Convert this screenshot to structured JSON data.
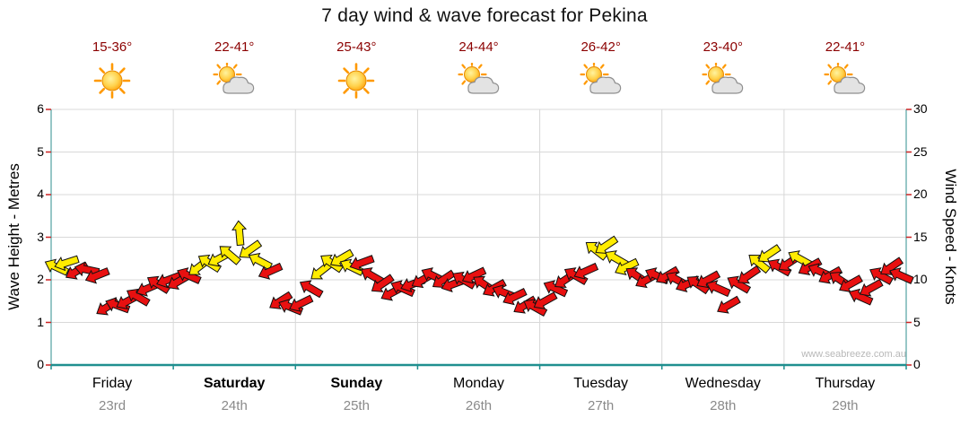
{
  "title": "7 day wind & wave forecast for Pekina",
  "watermark": "www.seabreeze.com.au",
  "axes": {
    "left_label": "Wave Height - Metres",
    "right_label": "Wind Speed - Knots",
    "left_ticks": [
      "0",
      "1",
      "2",
      "3",
      "4",
      "5",
      "6"
    ],
    "right_ticks": [
      "0",
      "5",
      "10",
      "15",
      "20",
      "25",
      "30"
    ]
  },
  "days": [
    {
      "name": "Friday",
      "date": "23rd",
      "temp_range": "15-36°",
      "icon": "sun",
      "weekend": false
    },
    {
      "name": "Saturday",
      "date": "24th",
      "temp_range": "22-41°",
      "icon": "sun-cloud",
      "weekend": true
    },
    {
      "name": "Sunday",
      "date": "25th",
      "temp_range": "25-43°",
      "icon": "sun",
      "weekend": true
    },
    {
      "name": "Monday",
      "date": "26th",
      "temp_range": "24-44°",
      "icon": "sun-cloud",
      "weekend": false
    },
    {
      "name": "Tuesday",
      "date": "27th",
      "temp_range": "26-42°",
      "icon": "sun-cloud",
      "weekend": false
    },
    {
      "name": "Wednesday",
      "date": "28th",
      "temp_range": "23-40°",
      "icon": "sun-cloud",
      "weekend": false
    },
    {
      "name": "Thursday",
      "date": "29th",
      "temp_range": "22-41°",
      "icon": "sun-cloud",
      "weekend": false
    }
  ],
  "colors": {
    "arrow_red": "#e81010",
    "arrow_yellow": "#ffec00",
    "arrow_outline": "#101010",
    "grid": "#d8d8d8",
    "frame": "#2f8f8f",
    "bottom_axis": "#1f8f8f",
    "tick": "#cc2222",
    "temp_text": "#8b0000",
    "date_text": "#8a8a8a"
  },
  "chart_data": {
    "type": "scatter",
    "marker": "wind-arrow",
    "title": "7 day wind & wave forecast for Pekina",
    "categories": [
      "Friday 23rd",
      "Saturday 24th",
      "Sunday 25th",
      "Monday 26th",
      "Tuesday 27th",
      "Wednesday 28th",
      "Thursday 29th"
    ],
    "y_axis_left": {
      "label": "Wave Height - Metres",
      "range": [
        0,
        6
      ]
    },
    "y_axis_right": {
      "label": "Wind Speed - Knots",
      "range": [
        0,
        30
      ]
    },
    "points_per_day": 12,
    "x_spacing": "even, 12 points per day across 7 days",
    "point_format": [
      "wind_speed_knots",
      "arrow_direction_deg",
      "color(r=red,y=yellow)"
    ],
    "points": [
      [
        11.5,
        -155,
        "y"
      ],
      [
        12,
        162,
        "y"
      ],
      [
        11,
        150,
        "r"
      ],
      [
        11.2,
        -168,
        "r"
      ],
      [
        10.5,
        158,
        "r"
      ],
      [
        6.8,
        148,
        "r"
      ],
      [
        7,
        -160,
        "r"
      ],
      [
        7.5,
        152,
        "r"
      ],
      [
        8,
        -150,
        "r"
      ],
      [
        9,
        157,
        "r"
      ],
      [
        9.5,
        -148,
        "r"
      ],
      [
        10,
        160,
        "r"
      ],
      [
        9.8,
        150,
        "r"
      ],
      [
        10.5,
        -156,
        "r"
      ],
      [
        11.5,
        142,
        "y"
      ],
      [
        12,
        -148,
        "y"
      ],
      [
        12.5,
        152,
        "y"
      ],
      [
        13,
        -140,
        "y"
      ],
      [
        15.5,
        -95,
        "y"
      ],
      [
        13.5,
        145,
        "y"
      ],
      [
        12.2,
        -152,
        "y"
      ],
      [
        11,
        156,
        "r"
      ],
      [
        7.5,
        148,
        "r"
      ],
      [
        6.8,
        -158,
        "r"
      ],
      [
        7.2,
        154,
        "r"
      ],
      [
        9,
        -150,
        "r"
      ],
      [
        11,
        142,
        "y"
      ],
      [
        12,
        -146,
        "y"
      ],
      [
        12.5,
        150,
        "y"
      ],
      [
        11.5,
        -154,
        "y"
      ],
      [
        12,
        160,
        "r"
      ],
      [
        10.5,
        -150,
        "r"
      ],
      [
        9.5,
        146,
        "r"
      ],
      [
        8.5,
        152,
        "r"
      ],
      [
        9,
        -156,
        "r"
      ],
      [
        9.5,
        160,
        "r"
      ],
      [
        10,
        150,
        "r"
      ],
      [
        10.5,
        -154,
        "r"
      ],
      [
        10,
        146,
        "r"
      ],
      [
        9.5,
        160,
        "r"
      ],
      [
        10,
        -150,
        "r"
      ],
      [
        10.5,
        155,
        "r"
      ],
      [
        9.5,
        -146,
        "r"
      ],
      [
        9,
        151,
        "r"
      ],
      [
        8.5,
        -158,
        "r"
      ],
      [
        8,
        154,
        "r"
      ],
      [
        7,
        149,
        "r"
      ],
      [
        6.8,
        -151,
        "r"
      ],
      [
        7.5,
        151,
        "r"
      ],
      [
        9,
        -155,
        "r"
      ],
      [
        10,
        146,
        "r"
      ],
      [
        10.5,
        -150,
        "r"
      ],
      [
        11,
        156,
        "r"
      ],
      [
        13.5,
        -142,
        "y"
      ],
      [
        14,
        146,
        "y"
      ],
      [
        12.5,
        -150,
        "y"
      ],
      [
        11.5,
        154,
        "y"
      ],
      [
        10.5,
        -146,
        "r"
      ],
      [
        10,
        151,
        "r"
      ],
      [
        10.5,
        -155,
        "r"
      ],
      [
        10.5,
        150,
        "r"
      ],
      [
        10,
        -151,
        "r"
      ],
      [
        9.5,
        156,
        "r"
      ],
      [
        9.5,
        -146,
        "r"
      ],
      [
        10,
        151,
        "r"
      ],
      [
        9,
        -156,
        "r"
      ],
      [
        7,
        150,
        "r"
      ],
      [
        9.5,
        -150,
        "r"
      ],
      [
        10.5,
        146,
        "r"
      ],
      [
        12,
        -141,
        "y"
      ],
      [
        13,
        146,
        "y"
      ],
      [
        11.5,
        -151,
        "r"
      ],
      [
        12,
        146,
        "r"
      ],
      [
        12.5,
        -151,
        "y"
      ],
      [
        11.5,
        151,
        "r"
      ],
      [
        11,
        -156,
        "r"
      ],
      [
        10.5,
        151,
        "r"
      ],
      [
        10,
        -146,
        "r"
      ],
      [
        9.5,
        151,
        "r"
      ],
      [
        8,
        -156,
        "r"
      ],
      [
        9,
        151,
        "r"
      ],
      [
        10.5,
        -151,
        "r"
      ],
      [
        11.5,
        146,
        "r"
      ],
      [
        10.5,
        -156,
        "r"
      ]
    ]
  }
}
